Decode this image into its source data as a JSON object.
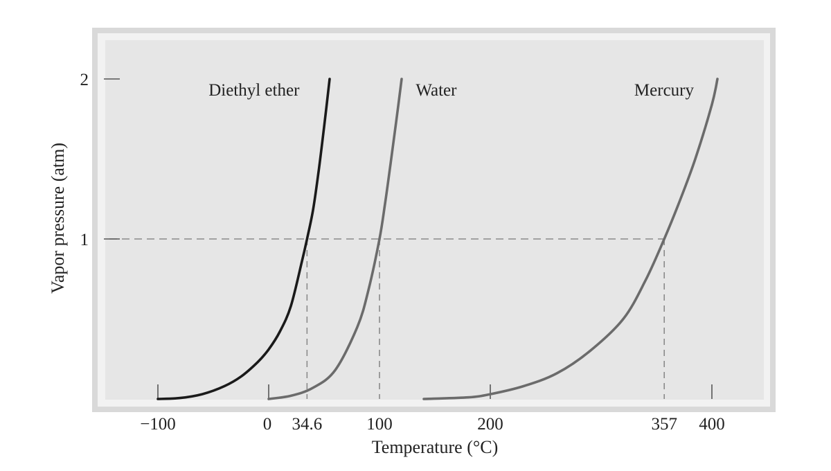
{
  "chart_data": {
    "type": "line",
    "title": "",
    "xlabel": "Temperature (°C)",
    "ylabel": "Vapor pressure (atm)",
    "xlim": [
      -145,
      430
    ],
    "ylim": [
      0,
      2.2
    ],
    "grid": false,
    "x_tick_labels": [
      {
        "value": -100,
        "label": "−100"
      },
      {
        "value": 0,
        "label": "0"
      },
      {
        "value": 34.6,
        "label": "34.6"
      },
      {
        "value": 100,
        "label": "100"
      },
      {
        "value": 200,
        "label": "200"
      },
      {
        "value": 357,
        "label": "357"
      },
      {
        "value": 400,
        "label": "400"
      }
    ],
    "x_tick_marks": [
      -100,
      0,
      200,
      400
    ],
    "y_ticks": [
      {
        "value": 1,
        "label": "1"
      },
      {
        "value": 2,
        "label": "2"
      }
    ],
    "reference_line": {
      "y": 1,
      "drop_x": [
        34.6,
        100,
        357
      ]
    },
    "series": [
      {
        "name": "Diethyl ether",
        "color": "#1a1a1a",
        "label_anchor_x": 34,
        "x": [
          -100,
          -80,
          -60,
          -40,
          -25,
          -10,
          0,
          10,
          20,
          30,
          34.6,
          40,
          45,
          50,
          55
        ],
        "y": [
          0.0,
          0.006,
          0.03,
          0.08,
          0.14,
          0.23,
          0.31,
          0.42,
          0.58,
          0.86,
          1.0,
          1.18,
          1.42,
          1.7,
          2.0
        ]
      },
      {
        "name": "Water",
        "color": "#6b6b6b",
        "label_anchor_x": 130,
        "x": [
          0,
          20,
          40,
          60,
          80,
          90,
          100,
          105,
          110,
          115,
          120
        ],
        "y": [
          0.0,
          0.02,
          0.07,
          0.18,
          0.45,
          0.68,
          1.0,
          1.22,
          1.47,
          1.73,
          2.0
        ]
      },
      {
        "name": "Mercury",
        "color": "#6b6b6b",
        "label_anchor_x": 390,
        "x": [
          140,
          180,
          200,
          230,
          260,
          290,
          320,
          340,
          357,
          370,
          385,
          400,
          405
        ],
        "y": [
          0.0,
          0.01,
          0.03,
          0.08,
          0.16,
          0.3,
          0.5,
          0.74,
          1.0,
          1.22,
          1.5,
          1.84,
          2.0
        ]
      }
    ]
  }
}
